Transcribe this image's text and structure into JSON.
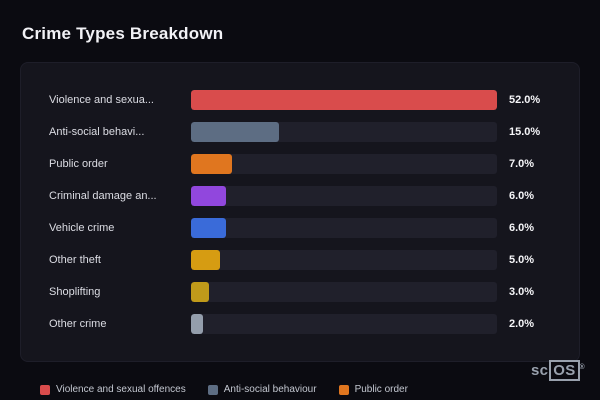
{
  "title": "Crime Types Breakdown",
  "chart_data": {
    "type": "bar",
    "orientation": "horizontal",
    "title": "Crime Types Breakdown",
    "categories": [
      "Violence and sexua...",
      "Anti-social behavi...",
      "Public order",
      "Criminal damage an...",
      "Vehicle crime",
      "Other theft",
      "Shoplifting",
      "Other crime"
    ],
    "values": [
      52.0,
      15.0,
      7.0,
      6.0,
      6.0,
      5.0,
      3.0,
      2.0
    ],
    "value_labels": [
      "52.0%",
      "15.0%",
      "7.0%",
      "6.0%",
      "6.0%",
      "5.0%",
      "3.0%",
      "2.0%"
    ],
    "bar_colors": [
      "#d94c4c",
      "#5d6d83",
      "#e0761f",
      "#9147dd",
      "#3a6bd9",
      "#d69c12",
      "#c09a1a",
      "#949eac"
    ],
    "xlim": [
      0,
      52
    ],
    "grid": false,
    "legend_position": "bottom",
    "legend": [
      {
        "label": "Violence and sexual offences",
        "color": "#d94c4c"
      },
      {
        "label": "Anti-social behaviour",
        "color": "#5d6d83"
      },
      {
        "label": "Public order",
        "color": "#e0761f"
      }
    ]
  },
  "watermark": {
    "prefix": "sc",
    "box": "OS",
    "reg": "®"
  }
}
